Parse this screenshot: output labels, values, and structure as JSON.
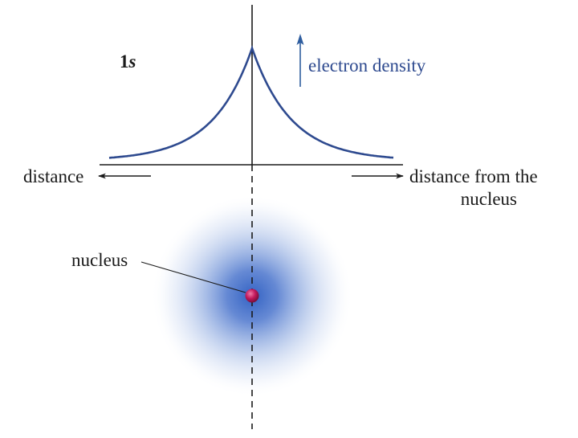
{
  "labels": {
    "orbital_main": "1",
    "orbital_sub": "s",
    "density_axis": "electron density",
    "distance_left": "distance",
    "distance_right_line1": "distance from the",
    "distance_right_line2": "nucleus",
    "nucleus": "nucleus"
  },
  "colors": {
    "curve": "#2e4a8f",
    "arrow_density": "#2e5d9f",
    "axis": "#1a1a1a",
    "cloud_center": "#2f5fc2",
    "nucleus_fill": "#c2185b",
    "text": "#1a1a1a",
    "density_text": "#2e4a8f"
  }
}
